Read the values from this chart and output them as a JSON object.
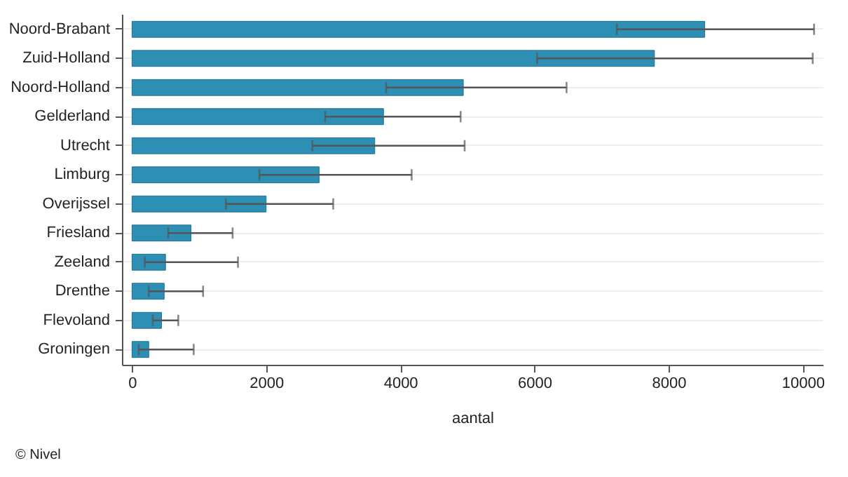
{
  "chart_data": {
    "type": "bar",
    "orientation": "horizontal",
    "xlabel": "aantal",
    "categories": [
      "Noord-Brabant",
      "Zuid-Holland",
      "Noord-Holland",
      "Gelderland",
      "Utrecht",
      "Limburg",
      "Overijssel",
      "Friesland",
      "Zeeland",
      "Drenthe",
      "Flevoland",
      "Groningen"
    ],
    "values": [
      8540,
      7790,
      4940,
      3750,
      3620,
      2790,
      2000,
      880,
      500,
      480,
      440,
      250
    ],
    "errors": [
      [
        7230,
        10170
      ],
      [
        6040,
        10150
      ],
      [
        3790,
        6480
      ],
      [
        2880,
        4900
      ],
      [
        2690,
        4960
      ],
      [
        1900,
        4170
      ],
      [
        1400,
        3000
      ],
      [
        540,
        1500
      ],
      [
        190,
        1580
      ],
      [
        250,
        1060
      ],
      [
        310,
        690
      ],
      [
        100,
        920
      ]
    ],
    "color": "#2e8fb4",
    "xlim": [
      -150,
      10300
    ],
    "xticks": [
      0,
      2000,
      4000,
      6000,
      8000,
      10000
    ],
    "grid": "y",
    "annotations": [
      "© Nivel"
    ]
  }
}
